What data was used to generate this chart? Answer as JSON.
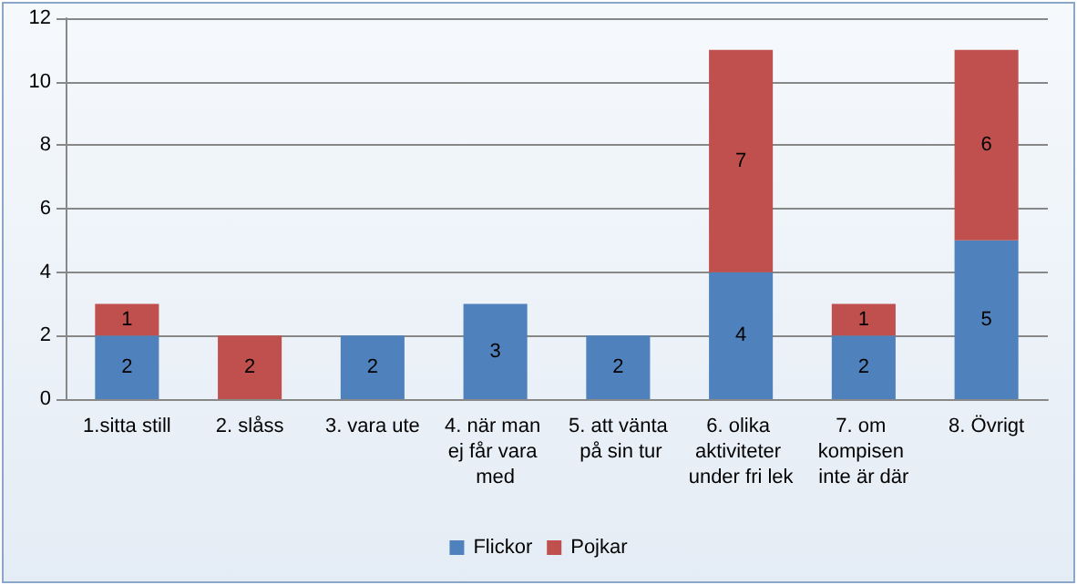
{
  "chart_data": {
    "type": "bar",
    "stacked": true,
    "categories": [
      "1.sitta still",
      "2. slåss",
      "3. vara ute",
      "4. när man ej får vara med",
      "5. att vänta på sin tur",
      "6. olika aktiviteter under fri lek",
      "7. om kompisen inte är där",
      "8. Övrigt"
    ],
    "series": [
      {
        "name": "Flickor",
        "color": "#4f81bd",
        "values": [
          2,
          null,
          2,
          3,
          2,
          4,
          2,
          5
        ]
      },
      {
        "name": "Pojkar",
        "color": "#c0504d",
        "values": [
          1,
          2,
          null,
          null,
          null,
          7,
          1,
          6
        ]
      }
    ],
    "ylim": [
      0,
      12
    ],
    "yticks": [
      0,
      2,
      4,
      6,
      8,
      10,
      12
    ],
    "grid": "y",
    "legend": "bottom",
    "data_labels": true
  }
}
